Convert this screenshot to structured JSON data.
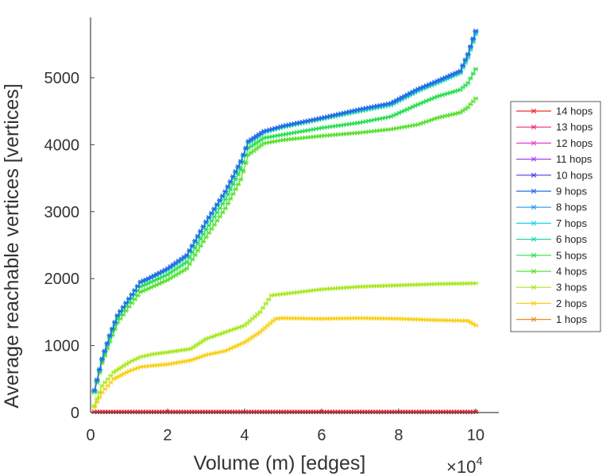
{
  "chart_data": {
    "type": "line",
    "title": "",
    "xlabel": "Volume (m) [edges]",
    "ylabel": "Average reachable vertices [vertices]",
    "x_multiplier_base": "×10",
    "x_multiplier_exp": "4",
    "xlim": [
      0,
      10.6
    ],
    "ylim": [
      0,
      5900
    ],
    "xticks": [
      0,
      2,
      4,
      6,
      8,
      10
    ],
    "yticks": [
      0,
      1000,
      2000,
      3000,
      4000,
      5000
    ],
    "grid": false,
    "legend_position": "right",
    "series": [
      {
        "name": "14 hops",
        "color": "#e8302a",
        "x": [
          0.1,
          10
        ],
        "y": [
          10,
          10
        ]
      },
      {
        "name": "13 hops",
        "color": "#f0287a",
        "x": [
          0.1,
          10
        ],
        "y": [
          10,
          10
        ]
      },
      {
        "name": "12 hops",
        "color": "#e83cd8",
        "x": [
          0.1,
          10
        ],
        "y": [
          10,
          10
        ]
      },
      {
        "name": "11 hops",
        "color": "#a040f0",
        "x": [
          0.1,
          10
        ],
        "y": [
          10,
          10
        ]
      },
      {
        "name": "10 hops",
        "color": "#4040e8",
        "x": [
          0.1,
          10
        ],
        "y": [
          10,
          10
        ]
      },
      {
        "name": "9 hops",
        "color": "#2868e8",
        "x": [
          0.1,
          0.3,
          0.5,
          0.7,
          1.0,
          1.3,
          1.5,
          2.0,
          2.5,
          3.0,
          3.5,
          3.9,
          4.1,
          4.5,
          5.0,
          6.0,
          7.0,
          7.8,
          8.5,
          9.0,
          9.6,
          9.8,
          10.0
        ],
        "y": [
          330,
          800,
          1150,
          1450,
          1700,
          1950,
          2000,
          2150,
          2350,
          2850,
          3300,
          3750,
          4050,
          4200,
          4280,
          4400,
          4530,
          4620,
          4830,
          4950,
          5100,
          5350,
          5700
        ]
      },
      {
        "name": "8 hops",
        "color": "#2898f0",
        "x": [
          0.1,
          0.3,
          0.5,
          0.7,
          1.0,
          1.3,
          1.5,
          2.0,
          2.5,
          3.0,
          3.5,
          3.9,
          4.1,
          4.5,
          5.0,
          6.0,
          7.0,
          7.8,
          8.5,
          9.0,
          9.6,
          9.8,
          10.0
        ],
        "y": [
          330,
          800,
          1150,
          1450,
          1700,
          1950,
          2000,
          2150,
          2350,
          2850,
          3300,
          3750,
          4050,
          4200,
          4280,
          4400,
          4530,
          4620,
          4830,
          4950,
          5100,
          5350,
          5690
        ]
      },
      {
        "name": "7 hops",
        "color": "#20d0e8",
        "x": [
          0.1,
          0.3,
          0.5,
          0.7,
          1.0,
          1.3,
          1.5,
          2.0,
          2.5,
          3.0,
          3.5,
          3.9,
          4.1,
          4.5,
          5.0,
          6.0,
          7.0,
          7.8,
          8.5,
          9.0,
          9.6,
          9.8,
          10.0
        ],
        "y": [
          330,
          800,
          1150,
          1450,
          1700,
          1950,
          2000,
          2150,
          2350,
          2850,
          3300,
          3750,
          4050,
          4200,
          4280,
          4400,
          4520,
          4610,
          4820,
          4940,
          5090,
          5340,
          5680
        ]
      },
      {
        "name": "6 hops",
        "color": "#20d8a0",
        "x": [
          0.1,
          0.3,
          0.5,
          0.7,
          1.0,
          1.3,
          1.5,
          2.0,
          2.5,
          3.0,
          3.5,
          3.9,
          4.1,
          4.5,
          5.0,
          6.0,
          7.0,
          7.8,
          8.5,
          9.0,
          9.6,
          9.8,
          10.0
        ],
        "y": [
          320,
          790,
          1140,
          1440,
          1690,
          1940,
          1990,
          2130,
          2330,
          2830,
          3280,
          3730,
          4030,
          4180,
          4260,
          4380,
          4500,
          4590,
          4800,
          4920,
          5070,
          5300,
          5650
        ]
      },
      {
        "name": "5 hops",
        "color": "#28e050",
        "x": [
          0.1,
          0.3,
          0.5,
          0.7,
          1.0,
          1.3,
          1.5,
          2.0,
          2.5,
          3.0,
          3.5,
          3.9,
          4.1,
          4.5,
          5.0,
          6.0,
          7.0,
          7.8,
          8.5,
          9.0,
          9.6,
          9.8,
          10.0
        ],
        "y": [
          310,
          770,
          1110,
          1400,
          1650,
          1880,
          1930,
          2060,
          2250,
          2730,
          3180,
          3630,
          3950,
          4100,
          4150,
          4250,
          4330,
          4420,
          4600,
          4720,
          4820,
          4920,
          5130
        ]
      },
      {
        "name": "4 hops",
        "color": "#58e030",
        "x": [
          0.1,
          0.3,
          0.5,
          0.7,
          1.0,
          1.3,
          1.5,
          2.0,
          2.5,
          3.0,
          3.5,
          3.9,
          4.1,
          4.5,
          5.0,
          6.0,
          7.0,
          7.8,
          8.5,
          9.0,
          9.6,
          9.8,
          10.0
        ],
        "y": [
          300,
          740,
          1060,
          1340,
          1580,
          1800,
          1850,
          1980,
          2150,
          2620,
          3050,
          3480,
          3850,
          4020,
          4070,
          4130,
          4180,
          4230,
          4300,
          4400,
          4480,
          4560,
          4690
        ]
      },
      {
        "name": "3 hops",
        "color": "#a8e820",
        "x": [
          0.1,
          0.3,
          0.6,
          1.0,
          1.3,
          1.6,
          2.0,
          2.6,
          3.0,
          3.5,
          4.0,
          4.4,
          4.7,
          5.0,
          6.0,
          7.0,
          8.0,
          9.0,
          10.0
        ],
        "y": [
          100,
          400,
          600,
          750,
          830,
          870,
          900,
          950,
          1100,
          1200,
          1300,
          1500,
          1750,
          1770,
          1840,
          1880,
          1900,
          1920,
          1930
        ]
      },
      {
        "name": "2 hops",
        "color": "#f8d018",
        "x": [
          0.1,
          0.3,
          0.6,
          1.0,
          1.3,
          1.6,
          2.0,
          2.6,
          3.0,
          3.5,
          4.0,
          4.4,
          4.8,
          5.0,
          6.0,
          7.0,
          8.0,
          9.0,
          9.8,
          10.0
        ],
        "y": [
          80,
          300,
          500,
          620,
          680,
          700,
          720,
          780,
          860,
          920,
          1050,
          1200,
          1400,
          1410,
          1400,
          1410,
          1400,
          1380,
          1370,
          1300
        ]
      },
      {
        "name": "1 hops",
        "color": "#f08820",
        "x": [
          0.1,
          10
        ],
        "y": [
          10,
          10
        ]
      }
    ]
  }
}
